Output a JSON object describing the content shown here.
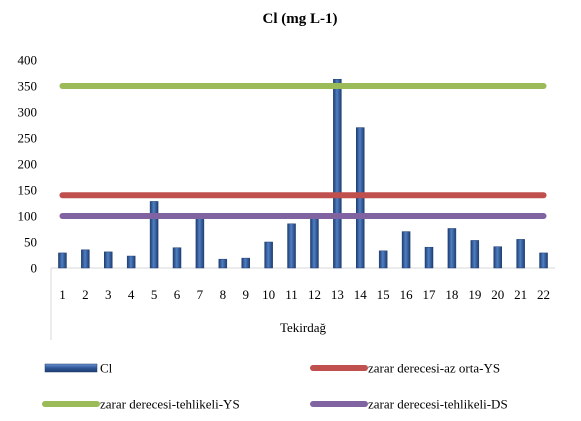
{
  "chart_data": {
    "type": "bar",
    "title": "Cl (mg L-1)",
    "xlabel": "Tekirdağ",
    "ylabel": "",
    "ylim": [
      0,
      400
    ],
    "yticks": [
      0,
      50,
      100,
      150,
      200,
      250,
      300,
      350,
      400
    ],
    "categories": [
      "1",
      "2",
      "3",
      "4",
      "5",
      "6",
      "7",
      "8",
      "9",
      "10",
      "11",
      "12",
      "13",
      "14",
      "15",
      "16",
      "17",
      "18",
      "19",
      "20",
      "21",
      "22"
    ],
    "series": [
      {
        "name": "Cl",
        "kind": "bar",
        "color": "#2e5597",
        "values": [
          29,
          35,
          31,
          23,
          128,
          39,
          97,
          17,
          19,
          50,
          85,
          97,
          363,
          270,
          33,
          70,
          40,
          76,
          53,
          41,
          55,
          29
        ]
      },
      {
        "name": "zarar derecesi-az orta-YS",
        "kind": "line",
        "color": "#c0504d",
        "value": 140
      },
      {
        "name": "zarar derecesi-tehlikeli-YS",
        "kind": "line",
        "color": "#9bbb59",
        "value": 350
      },
      {
        "name": "zarar derecesi-tehlikeli-DS",
        "kind": "line",
        "color": "#8064a2",
        "value": 100
      }
    ],
    "legend": "bottom",
    "grid": false
  }
}
